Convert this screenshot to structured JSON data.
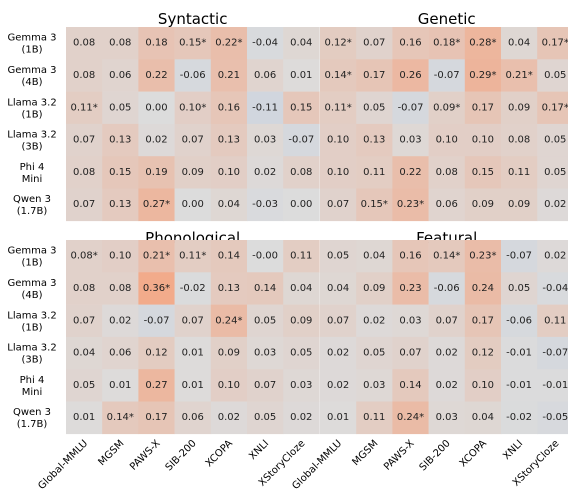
{
  "chart_data": {
    "type": "heatmap",
    "rows": [
      "Gemma 3\n(1B)",
      "Gemma 3\n(4B)",
      "Llama 3.2\n(1B)",
      "Llama 3.2\n(3B)",
      "Phi 4\nMini",
      "Qwen 3\n(1.7B)"
    ],
    "columns": [
      "Global-MMLU",
      "MGSM",
      "PAWS-X",
      "SIB-200",
      "XCOPA",
      "XNLI",
      "XStoryCloze"
    ],
    "color_range": [
      -0.4,
      0.4
    ],
    "colors": {
      "negative": "#b4c5e4",
      "neutral": "#dcdcdc",
      "positive": "#f4a582"
    },
    "panels": [
      {
        "title": "Syntactic",
        "values": [
          [
            0.08,
            0.08,
            0.18,
            0.15,
            0.22,
            -0.04,
            0.04
          ],
          [
            0.08,
            0.06,
            0.22,
            -0.06,
            0.21,
            0.06,
            0.01
          ],
          [
            0.11,
            0.05,
            0.0,
            0.1,
            0.16,
            -0.11,
            0.15
          ],
          [
            0.07,
            0.13,
            0.02,
            0.07,
            0.13,
            0.03,
            -0.07
          ],
          [
            0.08,
            0.15,
            0.19,
            0.09,
            0.1,
            0.02,
            0.08
          ],
          [
            0.07,
            0.13,
            0.27,
            0.0,
            0.04,
            -0.03,
            0.0
          ]
        ],
        "labels": [
          [
            "0.08",
            "0.08",
            "0.18",
            "0.15*",
            "0.22*",
            "-0.04",
            "0.04"
          ],
          [
            "0.08",
            "0.06",
            "0.22",
            "-0.06",
            "0.21",
            "0.06",
            "0.01"
          ],
          [
            "0.11*",
            "0.05",
            "0.00",
            "0.10*",
            "0.16",
            "-0.11",
            "0.15"
          ],
          [
            "0.07",
            "0.13",
            "0.02",
            "0.07",
            "0.13",
            "0.03",
            "-0.07"
          ],
          [
            "0.08",
            "0.15",
            "0.19",
            "0.09",
            "0.10",
            "0.02",
            "0.08"
          ],
          [
            "0.07",
            "0.13",
            "0.27*",
            "0.00",
            "0.04",
            "-0.03",
            "0.00"
          ]
        ]
      },
      {
        "title": "Genetic",
        "values": [
          [
            0.12,
            0.07,
            0.16,
            0.18,
            0.28,
            0.04,
            0.17
          ],
          [
            0.14,
            0.17,
            0.26,
            -0.07,
            0.29,
            0.21,
            0.05
          ],
          [
            0.11,
            0.05,
            -0.07,
            0.09,
            0.17,
            0.09,
            0.17
          ],
          [
            0.1,
            0.13,
            0.03,
            0.1,
            0.1,
            0.08,
            0.05
          ],
          [
            0.1,
            0.11,
            0.22,
            0.08,
            0.15,
            0.11,
            0.05
          ],
          [
            0.07,
            0.15,
            0.23,
            0.06,
            0.09,
            0.09,
            0.02
          ]
        ],
        "labels": [
          [
            "0.12*",
            "0.07",
            "0.16",
            "0.18*",
            "0.28*",
            "0.04",
            "0.17*"
          ],
          [
            "0.14*",
            "0.17",
            "0.26",
            "-0.07",
            "0.29*",
            "0.21*",
            "0.05"
          ],
          [
            "0.11*",
            "0.05",
            "-0.07",
            "0.09*",
            "0.17",
            "0.09",
            "0.17*"
          ],
          [
            "0.10",
            "0.13",
            "0.03",
            "0.10",
            "0.10",
            "0.08",
            "0.05"
          ],
          [
            "0.10",
            "0.11",
            "0.22",
            "0.08",
            "0.15",
            "0.11",
            "0.05"
          ],
          [
            "0.07",
            "0.15*",
            "0.23*",
            "0.06",
            "0.09",
            "0.09",
            "0.02"
          ]
        ]
      },
      {
        "title": "Phonological",
        "values": [
          [
            0.08,
            0.1,
            0.21,
            0.11,
            0.14,
            -0.0,
            0.11
          ],
          [
            0.08,
            0.08,
            0.36,
            -0.02,
            0.13,
            0.14,
            0.04
          ],
          [
            0.07,
            0.02,
            -0.07,
            0.07,
            0.24,
            0.05,
            0.09
          ],
          [
            0.04,
            0.06,
            0.12,
            0.01,
            0.09,
            0.03,
            0.05
          ],
          [
            0.05,
            0.01,
            0.27,
            0.01,
            0.1,
            0.07,
            0.03
          ],
          [
            0.01,
            0.14,
            0.17,
            0.06,
            0.02,
            0.05,
            0.02
          ]
        ],
        "labels": [
          [
            "0.08*",
            "0.10",
            "0.21*",
            "0.11*",
            "0.14",
            "-0.00",
            "0.11"
          ],
          [
            "0.08",
            "0.08",
            "0.36*",
            "-0.02",
            "0.13",
            "0.14",
            "0.04"
          ],
          [
            "0.07",
            "0.02",
            "-0.07",
            "0.07",
            "0.24*",
            "0.05",
            "0.09"
          ],
          [
            "0.04",
            "0.06",
            "0.12",
            "0.01",
            "0.09",
            "0.03",
            "0.05"
          ],
          [
            "0.05",
            "0.01",
            "0.27",
            "0.01",
            "0.10",
            "0.07",
            "0.03"
          ],
          [
            "0.01",
            "0.14*",
            "0.17",
            "0.06",
            "0.02",
            "0.05",
            "0.02"
          ]
        ]
      },
      {
        "title": "Featural",
        "values": [
          [
            0.05,
            0.04,
            0.16,
            0.14,
            0.23,
            -0.07,
            0.02
          ],
          [
            0.04,
            0.09,
            0.23,
            -0.06,
            0.24,
            0.05,
            -0.04
          ],
          [
            0.07,
            0.02,
            0.03,
            0.07,
            0.17,
            -0.06,
            0.11
          ],
          [
            0.02,
            0.05,
            0.07,
            0.02,
            0.12,
            -0.01,
            -0.07
          ],
          [
            0.02,
            0.03,
            0.14,
            0.02,
            0.1,
            -0.01,
            -0.01
          ],
          [
            0.01,
            0.11,
            0.24,
            0.03,
            0.04,
            -0.02,
            -0.05
          ]
        ],
        "labels": [
          [
            "0.05",
            "0.04",
            "0.16",
            "0.14*",
            "0.23*",
            "-0.07",
            "0.02"
          ],
          [
            "0.04",
            "0.09",
            "0.23",
            "-0.06",
            "0.24",
            "0.05",
            "-0.04"
          ],
          [
            "0.07",
            "0.02",
            "0.03",
            "0.07",
            "0.17",
            "-0.06",
            "0.11"
          ],
          [
            "0.02",
            "0.05",
            "0.07",
            "0.02",
            "0.12",
            "-0.01",
            "-0.07"
          ],
          [
            "0.02",
            "0.03",
            "0.14",
            "0.02",
            "0.10",
            "-0.01",
            "-0.01"
          ],
          [
            "0.01",
            "0.11",
            "0.24*",
            "0.03",
            "0.04",
            "-0.02",
            "-0.05"
          ]
        ]
      }
    ]
  }
}
